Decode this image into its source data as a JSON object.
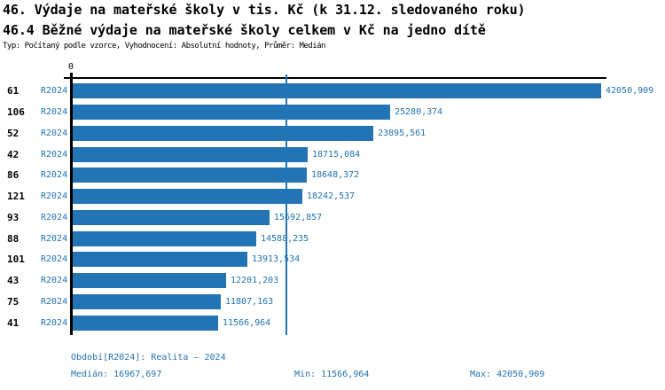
{
  "header": {
    "title1": "46. Výdaje na mateřské školy v tis. Kč (k 31.12. sledovaného roku)",
    "title2": "46.4 Běžné výdaje na mateřské školy celkem v Kč na jedno dítě",
    "meta": "Typ: Počítaný podle vzorce, Vyhodnocení: Absolutní hodnoty, Průměr: Medián"
  },
  "chart_data": {
    "type": "bar",
    "orientation": "horizontal",
    "title": "46. Výdaje na mateřské školy v tis. Kč (k 31.12. sledovaného roku)",
    "subtitle": "46.4 Běžné výdaje na mateřské školy celkem v Kč na jedno dítě",
    "categories": [
      "61",
      "106",
      "52",
      "42",
      "86",
      "121",
      "93",
      "88",
      "101",
      "43",
      "75",
      "41"
    ],
    "series_label": "R2024",
    "values": [
      42050.909,
      25280.374,
      23895.561,
      18715.084,
      18648.372,
      18242.537,
      15692.857,
      14588.235,
      13913.534,
      12201.203,
      11807.163,
      11566.964
    ],
    "value_labels": [
      "42050,909",
      "25280,374",
      "23895,561",
      "18715,084",
      "18648,372",
      "18242,537",
      "15692,857",
      "14588,235",
      "13913,534",
      "12201,203",
      "11807,163",
      "11566,964"
    ],
    "x_axis": {
      "origin_tick_label": "0",
      "xlim": [
        0,
        42333
      ],
      "gridline_value": 16967.697
    },
    "median": 16967.697,
    "min": 11566.964,
    "max": 42050.909,
    "bar_color": "#2274b5",
    "label_color": "#2173b0",
    "legend_position": "none",
    "grid": "single-median-line"
  },
  "footer": {
    "period": "Období[R2024]: Realita – 2024",
    "median": "Medián: 16967,697",
    "min": "Min: 11566,964",
    "max": "Max: 42050,909"
  }
}
